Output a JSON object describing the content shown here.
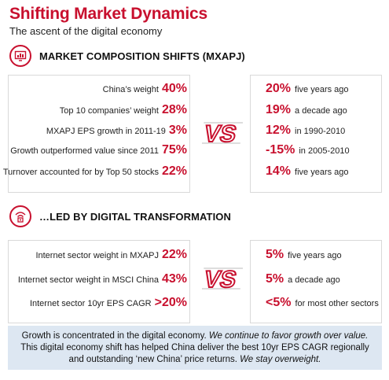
{
  "header": {
    "title": "Shifting Market Dynamics",
    "subtitle": "The ascent of the digital economy"
  },
  "section1": {
    "icon": "chart-monitor-icon",
    "label": "MARKET COMPOSITION SHIFTS (MXAPJ)",
    "vs_label": "VS",
    "left": [
      {
        "label": "China’s weight",
        "value": "40%"
      },
      {
        "label": "Top 10 companies’ weight",
        "value": "28%"
      },
      {
        "label": "MXAPJ EPS growth in 2011-19",
        "value": "3%"
      },
      {
        "label": "Growth outperformed value since 2011",
        "value": "75%"
      },
      {
        "label": "Turnover accounted for by Top 50 stocks",
        "value": "22%"
      }
    ],
    "right": [
      {
        "value": "20%",
        "label": "five years ago"
      },
      {
        "value": "19%",
        "label": "a decade ago"
      },
      {
        "value": "12%",
        "label": "in 1990-2010"
      },
      {
        "value": "-15%",
        "label": "in 2005-2010"
      },
      {
        "value": "14%",
        "label": "five years ago"
      }
    ]
  },
  "section2": {
    "icon": "wifi-device-icon",
    "label": "…LED BY DIGITAL TRANSFORMATION",
    "vs_label": "VS",
    "left": [
      {
        "label": "Internet sector weight in MXAPJ",
        "value": "22%"
      },
      {
        "label": "Internet sector weight in MSCI China",
        "value": "43%"
      },
      {
        "label": "Internet sector 10yr EPS CAGR",
        "value": ">20%"
      }
    ],
    "right": [
      {
        "value": "5%",
        "label": "five years ago"
      },
      {
        "value": "5%",
        "label": "a decade ago"
      },
      {
        "value": "<5%",
        "label": "for most other sectors"
      }
    ]
  },
  "footer": {
    "p1": "Growth is concentrated in the digital economy. ",
    "p1_em": "We continue to favor growth over value.",
    "p2": "This digital economy shift has helped China deliver the best 10yr EPS CAGR regionally and outstanding ‘new China’ price returns. ",
    "p2_em": "We stay overweight."
  },
  "colors": {
    "accent": "#c8102e",
    "footer_bg": "#dde7f2",
    "border": "#d9d9d9"
  }
}
